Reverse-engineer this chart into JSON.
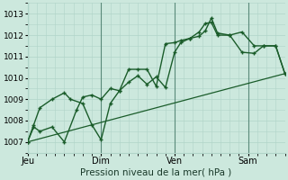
{
  "bg_color": "#cce8dd",
  "grid_color": "#b0d4c8",
  "line_color": "#1a5c2a",
  "vline_color": "#5a8a7a",
  "title": "Pression niveau de la mer( hPa )",
  "ylim": [
    1006.5,
    1013.5
  ],
  "yticks": [
    1007,
    1008,
    1009,
    1010,
    1011,
    1012,
    1013
  ],
  "xtick_labels": [
    "Jeu",
    "Dim",
    "Ven",
    "Sam"
  ],
  "xtick_positions": [
    0,
    48,
    96,
    144
  ],
  "vline_positions": [
    0,
    48,
    96,
    144
  ],
  "xlim": [
    0,
    168
  ],
  "series1_x": [
    0,
    4,
    8,
    16,
    24,
    32,
    36,
    42,
    48,
    54,
    60,
    66,
    72,
    78,
    84,
    90,
    96,
    100,
    106,
    112,
    116,
    120,
    124,
    132,
    140,
    148,
    154,
    162,
    168
  ],
  "series1_y": [
    1007.0,
    1007.7,
    1007.5,
    1007.7,
    1007.0,
    1008.5,
    1009.1,
    1009.2,
    1009.0,
    1009.5,
    1009.4,
    1010.4,
    1010.4,
    1010.4,
    1009.6,
    1011.6,
    1011.65,
    1011.75,
    1011.85,
    1012.15,
    1012.55,
    1012.6,
    1012.0,
    1012.0,
    1012.15,
    1011.5,
    1011.5,
    1011.5,
    1010.2
  ],
  "series2_x": [
    0,
    4,
    8,
    16,
    24,
    28,
    36,
    42,
    48,
    54,
    60,
    66,
    72,
    78,
    84,
    90,
    96,
    100,
    106,
    112,
    116,
    120,
    124,
    132,
    140,
    148,
    154,
    162,
    168
  ],
  "series2_y": [
    1007.0,
    1007.8,
    1008.6,
    1009.0,
    1009.3,
    1009.0,
    1008.8,
    1007.8,
    1007.1,
    1008.8,
    1009.4,
    1009.8,
    1010.1,
    1009.7,
    1010.05,
    1009.55,
    1011.2,
    1011.65,
    1011.85,
    1011.95,
    1012.2,
    1012.8,
    1012.1,
    1012.0,
    1011.2,
    1011.15,
    1011.5,
    1011.5,
    1010.2
  ],
  "series3_x": [
    0,
    168
  ],
  "series3_y": [
    1007.0,
    1010.2
  ]
}
